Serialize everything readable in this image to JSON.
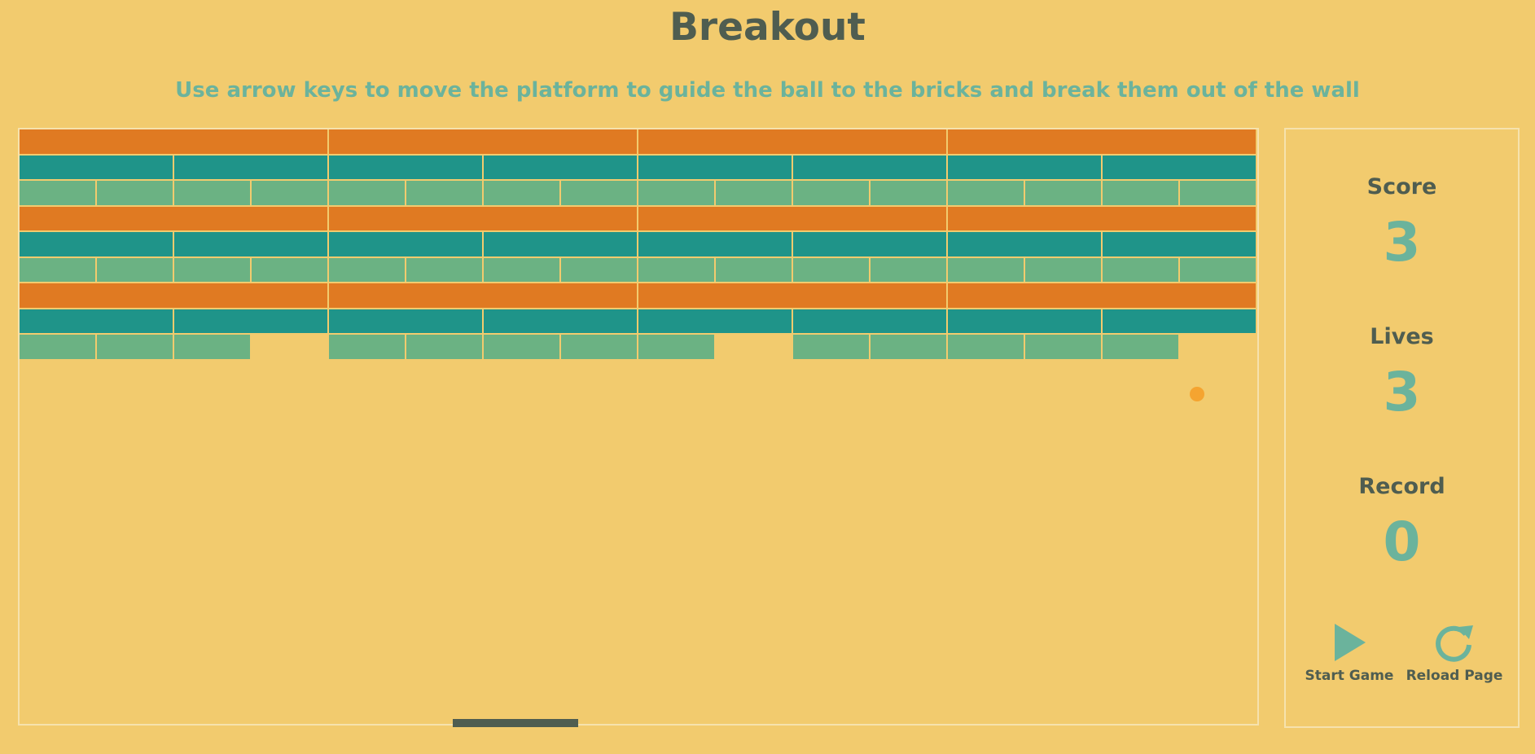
{
  "header": {
    "title": "Breakout",
    "instructions": "Use arrow keys to move the platform to guide the ball to the bricks and break them out of the wall"
  },
  "colors": {
    "background": "#f2cb6e",
    "brick_orange": "#e07a22",
    "brick_teal": "#1f9489",
    "brick_green": "#6bb283",
    "ball": "#f5a430",
    "paddle": "#4f5d50",
    "accent_text": "#6bb39c",
    "dark_text": "#4f5d50"
  },
  "stats": {
    "score_label": "Score",
    "score_value": "3",
    "lives_label": "Lives",
    "lives_value": "3",
    "record_label": "Record",
    "record_value": "0"
  },
  "controls": {
    "start_label": "Start Game",
    "start_icon": "play-icon",
    "reload_label": "Reload Page",
    "reload_icon": "reload-icon"
  },
  "bricks": {
    "rows": [
      {
        "color": "orange",
        "columns": 4,
        "present": [
          1,
          1,
          1,
          1
        ]
      },
      {
        "color": "teal",
        "columns": 8,
        "present": [
          1,
          1,
          1,
          1,
          1,
          1,
          1,
          1
        ]
      },
      {
        "color": "green",
        "columns": 16,
        "present": [
          1,
          1,
          1,
          1,
          1,
          1,
          1,
          1,
          1,
          1,
          1,
          1,
          1,
          1,
          1,
          1
        ]
      },
      {
        "color": "orange",
        "columns": 4,
        "present": [
          1,
          1,
          1,
          1
        ]
      },
      {
        "color": "teal",
        "columns": 8,
        "present": [
          1,
          1,
          1,
          1,
          1,
          1,
          1,
          1
        ]
      },
      {
        "color": "green",
        "columns": 16,
        "present": [
          1,
          1,
          1,
          1,
          1,
          1,
          1,
          1,
          1,
          1,
          1,
          1,
          1,
          1,
          1,
          1
        ]
      },
      {
        "color": "orange",
        "columns": 4,
        "present": [
          1,
          1,
          1,
          1
        ]
      },
      {
        "color": "teal",
        "columns": 8,
        "present": [
          1,
          1,
          1,
          1,
          1,
          1,
          1,
          1
        ]
      },
      {
        "color": "green",
        "columns": 16,
        "present": [
          1,
          1,
          1,
          0,
          1,
          1,
          1,
          1,
          1,
          0,
          1,
          1,
          1,
          1,
          1,
          0
        ]
      }
    ]
  }
}
